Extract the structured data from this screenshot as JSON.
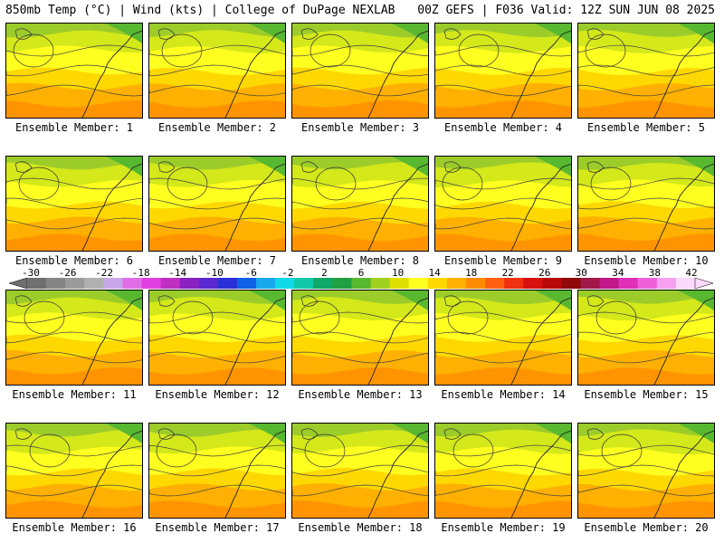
{
  "header": {
    "left_title": "850mb Temp (°C) | Wind (kts) | College of DuPage NEXLAB",
    "right_title": "00Z GEFS | F036 Valid: 12Z SUN JUN 08 2025"
  },
  "panels": [
    {
      "label": "Ensemble Member: 1",
      "warmth": 0.55
    },
    {
      "label": "Ensemble Member: 2",
      "warmth": 0.5
    },
    {
      "label": "Ensemble Member: 3",
      "warmth": 0.55
    },
    {
      "label": "Ensemble Member: 4",
      "warmth": 0.52
    },
    {
      "label": "Ensemble Member: 5",
      "warmth": 0.5
    },
    {
      "label": "Ensemble Member: 6",
      "warmth": 0.45
    },
    {
      "label": "Ensemble Member: 7",
      "warmth": 0.45
    },
    {
      "label": "Ensemble Member: 8",
      "warmth": 0.42
    },
    {
      "label": "Ensemble Member: 9",
      "warmth": 0.42
    },
    {
      "label": "Ensemble Member: 10",
      "warmth": 0.48
    },
    {
      "label": "Ensemble Member: 11",
      "warmth": 0.55
    },
    {
      "label": "Ensemble Member: 12",
      "warmth": 0.48
    },
    {
      "label": "Ensemble Member: 13",
      "warmth": 0.5
    },
    {
      "label": "Ensemble Member: 14",
      "warmth": 0.52
    },
    {
      "label": "Ensemble Member: 15",
      "warmth": 0.48
    },
    {
      "label": "Ensemble Member: 16",
      "warmth": 0.45
    },
    {
      "label": "Ensemble Member: 17",
      "warmth": 0.48
    },
    {
      "label": "Ensemble Member: 18",
      "warmth": 0.5
    },
    {
      "label": "Ensemble Member: 19",
      "warmth": 0.45
    },
    {
      "label": "Ensemble Member: 20",
      "warmth": 0.42
    }
  ],
  "colorbar": {
    "ticks": [
      "-30",
      "-26",
      "-22",
      "-18",
      "-14",
      "-10",
      "-6",
      "-2",
      "2",
      "6",
      "10",
      "14",
      "18",
      "22",
      "26",
      "30",
      "34",
      "38",
      "42"
    ],
    "colors": [
      "#6f6f6f",
      "#858585",
      "#9b9b9b",
      "#b1b1b1",
      "#c8a8e8",
      "#e06ee8",
      "#e040e0",
      "#c030c0",
      "#8a20c0",
      "#5a28d0",
      "#2a30d8",
      "#1060e8",
      "#18a8ee",
      "#10d8e8",
      "#10c8a8",
      "#10a868",
      "#20a040",
      "#58b830",
      "#a0d020",
      "#e0e000",
      "#ffff20",
      "#ffd800",
      "#ffb000",
      "#ff8c00",
      "#ff6010",
      "#f03010",
      "#d81010",
      "#b80808",
      "#900808",
      "#a01848",
      "#c01888",
      "#e030b8",
      "#f060d8",
      "#f8a0f0",
      "#fcd8fc"
    ]
  }
}
